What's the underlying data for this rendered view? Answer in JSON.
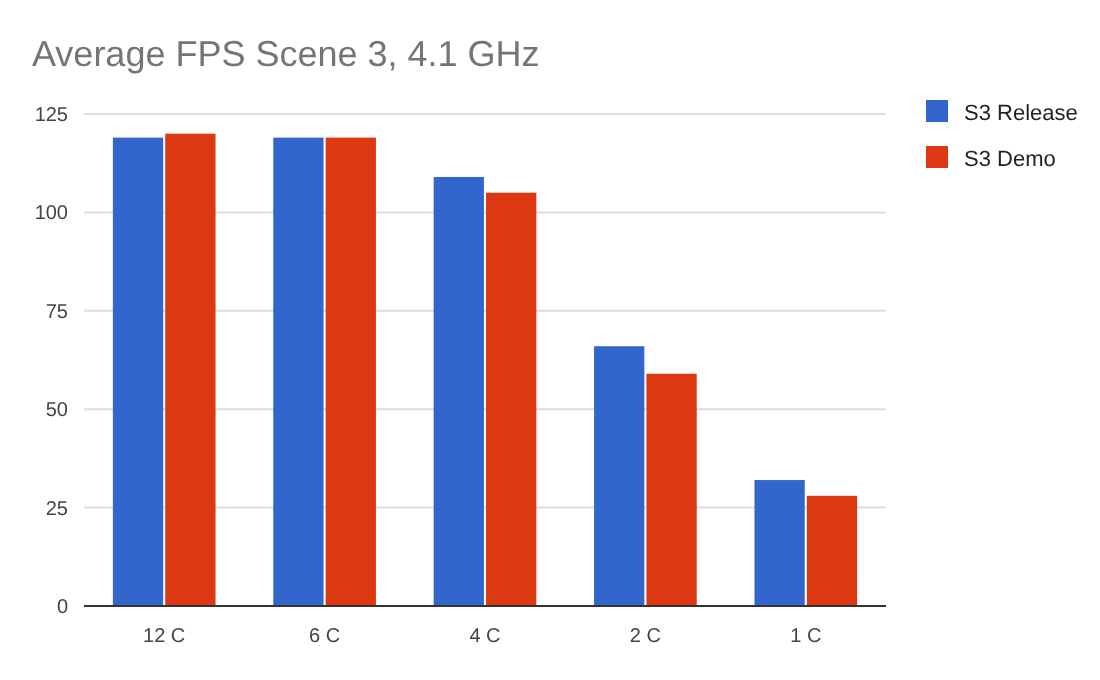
{
  "chart_data": {
    "type": "bar",
    "title": "Average FPS Scene 3, 4.1 GHz",
    "categories": [
      "12 C",
      "6 C",
      "4 C",
      "2 C",
      "1 C"
    ],
    "series": [
      {
        "name": "S3 Release",
        "color": "#3366cc",
        "values": [
          119,
          119,
          109,
          66,
          32
        ]
      },
      {
        "name": "S3 Demo",
        "color": "#dc3912",
        "values": [
          120,
          119,
          105,
          59,
          28
        ]
      }
    ],
    "ylim": [
      0,
      125
    ],
    "yticks": [
      0,
      25,
      50,
      75,
      100,
      125
    ],
    "grid": "y",
    "legend": "right"
  }
}
